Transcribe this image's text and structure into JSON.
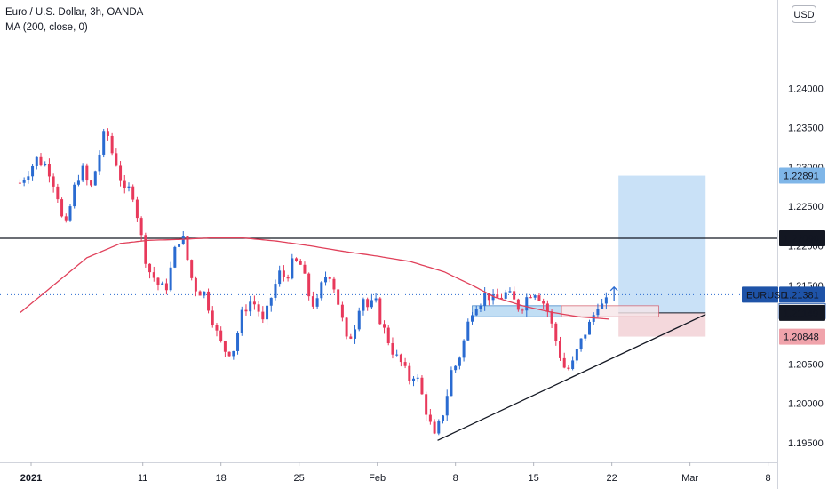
{
  "chart_data": {
    "type": "candlestick",
    "title": "Euro / U.S. Dollar, 3h, OANDA",
    "indicator": "MA (200, close, 0)",
    "symbol": "EURUSD",
    "currency": "USD",
    "y_ticks": [
      "1.24000",
      "1.23500",
      "1.23000",
      "1.22500",
      "1.22000",
      "1.21500",
      "1.20500",
      "1.20000",
      "1.19500"
    ],
    "ylim": [
      1.194,
      1.244
    ],
    "x_ticks": [
      {
        "label": "2021",
        "day": 0
      },
      {
        "label": "11",
        "day": 10
      },
      {
        "label": "18",
        "day": 17
      },
      {
        "label": "25",
        "day": 24
      },
      {
        "label": "Feb",
        "day": 31
      },
      {
        "label": "8",
        "day": 38
      },
      {
        "label": "15",
        "day": 45
      },
      {
        "label": "22",
        "day": 52
      },
      {
        "label": "Mar",
        "day": 59
      },
      {
        "label": "8",
        "day": 66
      }
    ],
    "price_labels": [
      {
        "symbol": "",
        "value": "1.22891",
        "color": "#7fb6e8",
        "text": "#131722"
      },
      {
        "symbol": "",
        "value": "1.22096",
        "color": "#131722",
        "text": "#ffffff"
      },
      {
        "symbol": "EURUSD",
        "value": "1.21381",
        "countdown": "01:08:11",
        "color": "#1e53a8",
        "text": "#ffffff"
      },
      {
        "symbol": "",
        "value": "1.21149",
        "color": "#131722",
        "text": "#ffffff"
      },
      {
        "symbol": "",
        "value": "1.20848",
        "color": "#f0a3ab",
        "text": "#131722"
      }
    ],
    "up_color": "#2a6bd1",
    "down_color": "#e8395b",
    "ma_color": "#e0405a",
    "price_path": [
      [
        -1,
        1.228
      ],
      [
        0.5,
        1.231
      ],
      [
        1.5,
        1.23
      ],
      [
        2.3,
        1.227
      ],
      [
        3,
        1.2215
      ],
      [
        3.8,
        1.227
      ],
      [
        4.5,
        1.23
      ],
      [
        5.3,
        1.227
      ],
      [
        6,
        1.231
      ],
      [
        6.7,
        1.235
      ],
      [
        7.2,
        1.232
      ],
      [
        7.8,
        1.23
      ],
      [
        8.3,
        1.2265
      ],
      [
        9,
        1.2275
      ],
      [
        9.5,
        1.224
      ],
      [
        10,
        1.22
      ],
      [
        10.5,
        1.217
      ],
      [
        11,
        1.216
      ],
      [
        11.6,
        1.2145
      ],
      [
        12.2,
        1.215
      ],
      [
        12.8,
        1.219
      ],
      [
        13.4,
        1.2215
      ],
      [
        13.8,
        1.22
      ],
      [
        14.2,
        1.2165
      ],
      [
        14.8,
        1.2145
      ],
      [
        15.5,
        1.214
      ],
      [
        16.2,
        1.211
      ],
      [
        16.8,
        1.208
      ],
      [
        17.5,
        1.2065
      ],
      [
        18.2,
        1.207
      ],
      [
        18.8,
        1.211
      ],
      [
        19.5,
        1.213
      ],
      [
        20.2,
        1.2125
      ],
      [
        20.8,
        1.21
      ],
      [
        21.5,
        1.2135
      ],
      [
        22.2,
        1.2165
      ],
      [
        22.8,
        1.216
      ],
      [
        23.5,
        1.218
      ],
      [
        24.2,
        1.2175
      ],
      [
        24.8,
        1.214
      ],
      [
        25.5,
        1.212
      ],
      [
        26.2,
        1.216
      ],
      [
        26.8,
        1.2165
      ],
      [
        27.3,
        1.214
      ],
      [
        27.8,
        1.211
      ],
      [
        28.3,
        1.2075
      ],
      [
        29,
        1.21
      ],
      [
        29.6,
        1.214
      ],
      [
        30.2,
        1.212
      ],
      [
        30.8,
        1.213
      ],
      [
        31.4,
        1.21
      ],
      [
        32,
        1.208
      ],
      [
        32.6,
        1.206
      ],
      [
        33.2,
        1.205
      ],
      [
        33.8,
        1.203
      ],
      [
        34.4,
        1.204
      ],
      [
        35,
        1.201
      ],
      [
        35.6,
        1.198
      ],
      [
        36.1,
        1.1955
      ],
      [
        36.6,
        1.1975
      ],
      [
        37.1,
        1.2
      ],
      [
        37.6,
        1.204
      ],
      [
        38.1,
        1.205
      ],
      [
        38.6,
        1.207
      ],
      [
        39.1,
        1.21
      ],
      [
        39.6,
        1.2125
      ],
      [
        40.2,
        1.213
      ],
      [
        40.8,
        1.214
      ],
      [
        41.4,
        1.213
      ],
      [
        42,
        1.2135
      ],
      [
        42.6,
        1.214
      ],
      [
        43.2,
        1.213
      ],
      [
        43.8,
        1.212
      ],
      [
        44.4,
        1.2135
      ],
      [
        45,
        1.2145
      ],
      [
        45.6,
        1.2135
      ],
      [
        46.2,
        1.212
      ],
      [
        46.8,
        1.209
      ],
      [
        47.4,
        1.206
      ],
      [
        47.9,
        1.204
      ],
      [
        48.5,
        1.205
      ],
      [
        49,
        1.207
      ],
      [
        49.6,
        1.209
      ],
      [
        50.2,
        1.2105
      ],
      [
        50.8,
        1.213
      ],
      [
        51.3,
        1.212
      ],
      [
        51.8,
        1.2138
      ]
    ],
    "ma_path": [
      [
        -1,
        1.2115
      ],
      [
        2,
        1.215
      ],
      [
        5,
        1.2185
      ],
      [
        8,
        1.2203
      ],
      [
        10.5,
        1.2207
      ],
      [
        13,
        1.2208
      ],
      [
        16,
        1.221
      ],
      [
        19,
        1.221
      ],
      [
        22,
        1.2206
      ],
      [
        25,
        1.22
      ],
      [
        28,
        1.2193
      ],
      [
        31,
        1.2187
      ],
      [
        34,
        1.218
      ],
      [
        37,
        1.2167
      ],
      [
        39.5,
        1.215
      ],
      [
        41.5,
        1.2135
      ],
      [
        44,
        1.2124
      ],
      [
        46.5,
        1.2116
      ],
      [
        49,
        1.211
      ],
      [
        51.8,
        1.2107
      ]
    ],
    "drawings": {
      "horizontal_line": 1.22096,
      "trendline": [
        [
          36.4,
          1.1953
        ],
        [
          60.4,
          1.2113
        ]
      ],
      "support_zone": {
        "from_day": 39.5,
        "to_day": 56.2,
        "top": 1.2116,
        "bottom": 1.2112
      },
      "long_position": {
        "from_day": 52.6,
        "to_day": 60.4,
        "entry": 1.21149,
        "target": 1.22891,
        "stop": 1.20848
      }
    }
  }
}
